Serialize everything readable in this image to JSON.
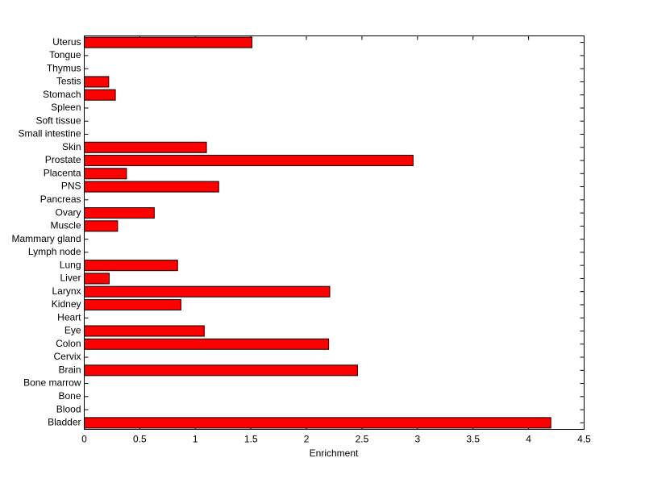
{
  "chart_data": {
    "type": "barh",
    "xlabel": "Enrichment",
    "categories": [
      "Bladder",
      "Blood",
      "Bone",
      "Bone marrow",
      "Brain",
      "Cervix",
      "Colon",
      "Eye",
      "Heart",
      "Kidney",
      "Larynx",
      "Liver",
      "Lung",
      "Lymph node",
      "Mammary gland",
      "Muscle",
      "Ovary",
      "Pancreas",
      "PNS",
      "Placenta",
      "Prostate",
      "Skin",
      "Small intestine",
      "Soft tissue",
      "Spleen",
      "Stomach",
      "Testis",
      "Thymus",
      "Tongue",
      "Uterus"
    ],
    "values": [
      4.2,
      0,
      0,
      0,
      2.46,
      0,
      2.2,
      1.08,
      0,
      0.87,
      2.21,
      0.225,
      0.84,
      0,
      0,
      0.3,
      0.63,
      0,
      1.21,
      0.38,
      2.96,
      1.1,
      0,
      0,
      0,
      0.28,
      0.22,
      0,
      0,
      1.51
    ],
    "color": "#ff0000",
    "xlim": [
      0,
      4.5
    ],
    "xticks": [
      0,
      0.5,
      1,
      1.5,
      2,
      2.5,
      3,
      3.5,
      4,
      4.5
    ]
  }
}
